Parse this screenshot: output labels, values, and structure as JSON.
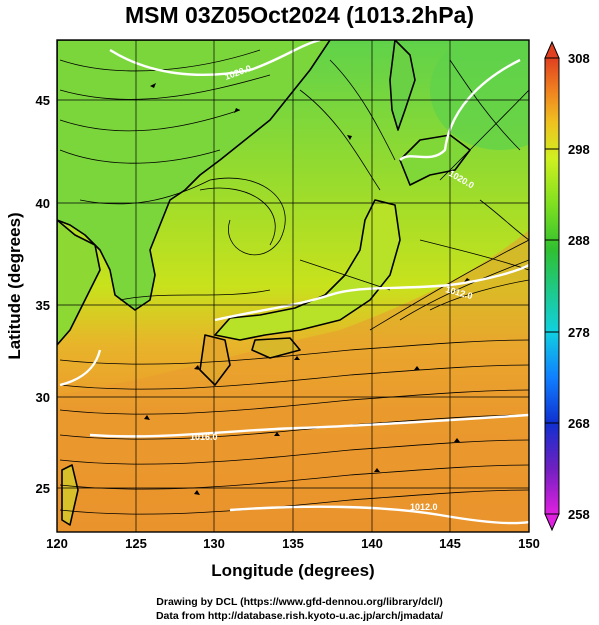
{
  "title": "MSM 03Z05Oct2024 (1013.2hPa)",
  "map": {
    "xlabel": "Longitude (degrees)",
    "ylabel": "Latitude  (degrees)",
    "lon_range": [
      120,
      150
    ],
    "lat_range": [
      22.5,
      48
    ],
    "lon_ticks": [
      120,
      125,
      130,
      135,
      140,
      145,
      150
    ],
    "lat_ticks": [
      25,
      30,
      35,
      40,
      45
    ],
    "field": "air temperature (K) with wind streamlines",
    "isobar_labels": [
      "1020.0",
      "1016.0",
      "1012.0",
      "1020.0",
      "1012.0"
    ]
  },
  "colorbar": {
    "range": [
      258,
      308
    ],
    "ticks": [
      258,
      268,
      278,
      288,
      298,
      308
    ],
    "colors": [
      "#e020e0",
      "#6020c0",
      "#1030d0",
      "#1080ff",
      "#10d0e0",
      "#20d080",
      "#30c030",
      "#80e020",
      "#d0f020",
      "#f0c020",
      "#f08020",
      "#e04020"
    ]
  },
  "footer": {
    "line1": "Drawing by DCL (https://www.gfd-dennou.org/library/dcl/)",
    "line2": "Data from http://database.rish.kyoto-u.ac.jp/arch/jmadata/"
  }
}
